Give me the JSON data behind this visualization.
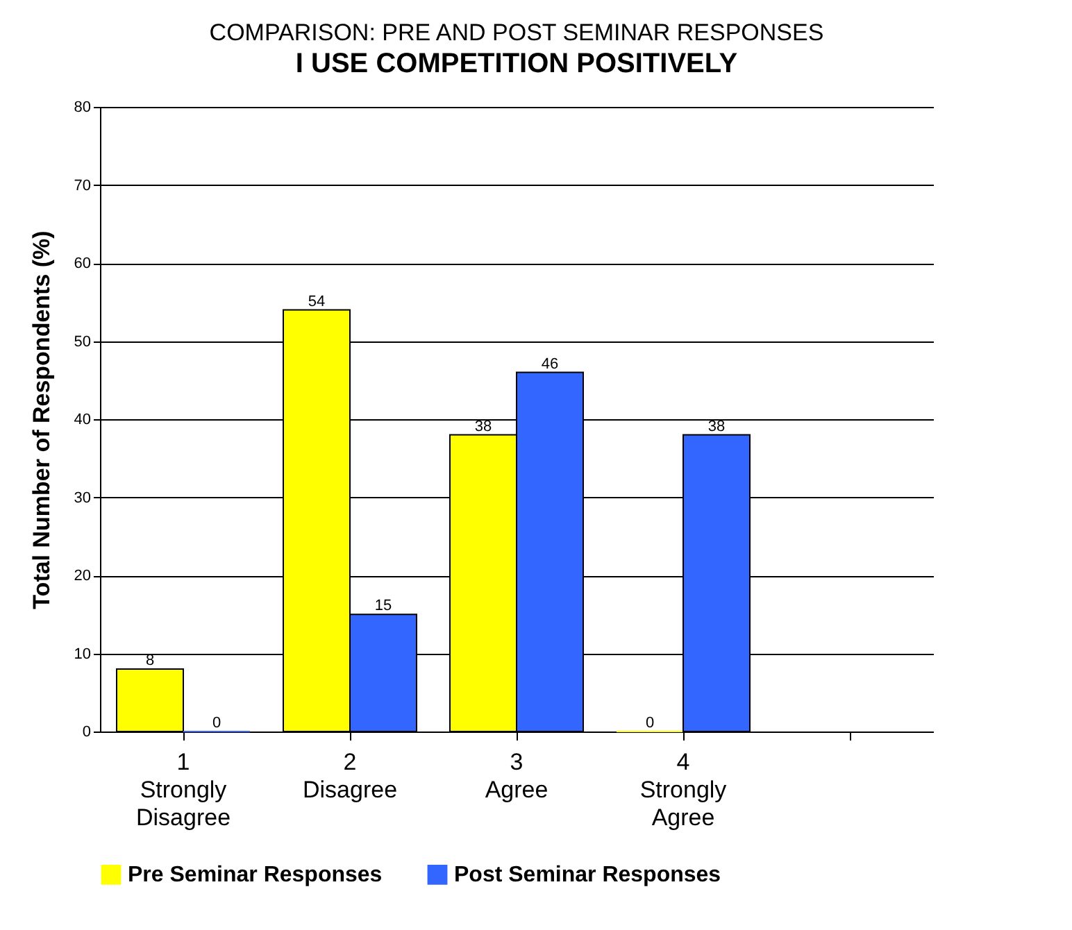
{
  "chart_data": {
    "type": "bar",
    "title": "COMPARISON: PRE AND POST SEMINAR RESPONSES",
    "subtitle": "I USE COMPETITION POSITIVELY",
    "ylabel": "Total Number of Respondents (%)",
    "categories": [
      "1\nStrongly\nDisagree",
      "2\nDisagree",
      "3\nAgree",
      "4\nStrongly\nAgree",
      null
    ],
    "series": [
      {
        "name": "Pre Seminar Responses",
        "color": "#ffff00",
        "values": [
          8,
          54,
          38,
          0,
          null
        ]
      },
      {
        "name": "Post Seminar Responses",
        "color": "#3366ff",
        "values": [
          0,
          15,
          46,
          38,
          null
        ]
      }
    ],
    "ylim": [
      0,
      80
    ],
    "yticks": [
      0,
      10,
      20,
      30,
      40,
      50,
      60,
      70,
      80
    ],
    "grid": "y",
    "legend": "bottom",
    "data_labels": true
  }
}
